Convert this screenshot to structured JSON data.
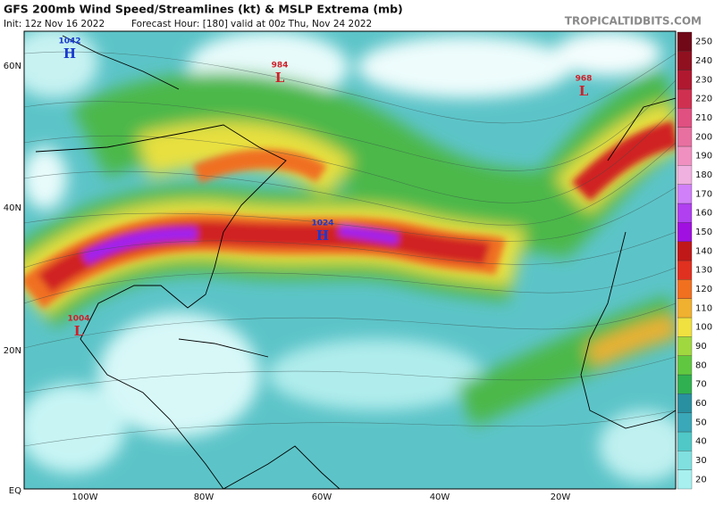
{
  "header": {
    "title": "GFS 200mb Wind Speed/Streamlines (kt) & MSLP Extrema (mb)",
    "init": "Init: 12z Nov 16 2022",
    "forecast_hour": "Forecast Hour: [180]",
    "valid": "valid at 00z Thu, Nov 24 2022",
    "source": "TROPICALTIDBITS.COM"
  },
  "lat_labels": [
    "60N",
    "40N",
    "20N",
    "EQ"
  ],
  "lon_labels": [
    "100W",
    "80W",
    "60W",
    "40W",
    "20W"
  ],
  "extrema": [
    {
      "value": "1042",
      "letter": "H",
      "color": "#1a3ad0"
    },
    {
      "value": "984",
      "letter": "L",
      "color": "#d0202a"
    },
    {
      "value": "968",
      "letter": "L",
      "color": "#d0202a"
    },
    {
      "value": "1024",
      "letter": "H",
      "color": "#1a3ad0"
    },
    {
      "value": "1004",
      "letter": "L",
      "color": "#d0202a"
    }
  ],
  "colorbar": {
    "labels": [
      20,
      30,
      40,
      50,
      60,
      70,
      80,
      90,
      100,
      110,
      120,
      130,
      140,
      150,
      160,
      170,
      180,
      190,
      200,
      210,
      220,
      230,
      240,
      250
    ],
    "colors": [
      "#a8f0f0",
      "#80e0e0",
      "#50c8c8",
      "#3aa8b8",
      "#2890a0",
      "#30b050",
      "#60c840",
      "#a0d840",
      "#f0e040",
      "#f0b030",
      "#f07020",
      "#e03020",
      "#c01818",
      "#a010e0",
      "#b040f0",
      "#d080f8",
      "#f0b0e0",
      "#f090c0",
      "#e870a0",
      "#e05080",
      "#d03050",
      "#b01830",
      "#901020",
      "#700818"
    ]
  }
}
